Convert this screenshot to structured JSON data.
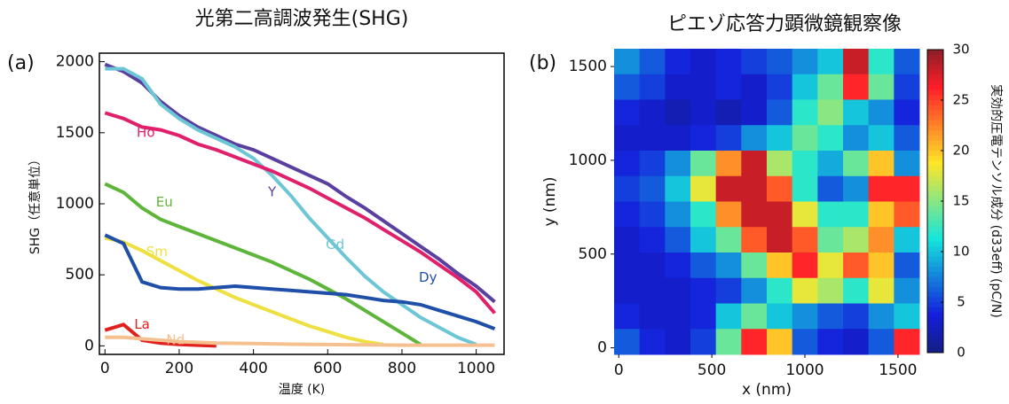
{
  "chart_data": [
    {
      "type": "line",
      "panel": "(a)",
      "title": "光第二高調波発生(SHG)",
      "xlabel": "温度 (K)",
      "ylabel": "SHG（任意単位）",
      "x": [
        0,
        50,
        100,
        150,
        200,
        250,
        300,
        350,
        400,
        450,
        500,
        550,
        600,
        650,
        700,
        750,
        800,
        850,
        900,
        950,
        1000,
        1050
      ],
      "series": [
        {
          "name": "Y",
          "color": "#5b3fa0",
          "values": [
            1980,
            1930,
            1850,
            1720,
            1620,
            1540,
            1480,
            1420,
            1380,
            1320,
            1260,
            1200,
            1140,
            1050,
            970,
            880,
            790,
            700,
            610,
            510,
            420,
            310
          ]
        },
        {
          "name": "Gd",
          "color": "#6cc6d6",
          "values": [
            1950,
            1950,
            1880,
            1700,
            1600,
            1520,
            1460,
            1400,
            1320,
            1200,
            1060,
            900,
            760,
            620,
            490,
            380,
            290,
            200,
            130,
            60,
            10,
            null
          ]
        },
        {
          "name": "Ho",
          "color": "#e0206a",
          "values": [
            1640,
            1600,
            1540,
            1520,
            1480,
            1420,
            1380,
            1330,
            1280,
            1230,
            1170,
            1110,
            1040,
            970,
            900,
            820,
            740,
            660,
            570,
            480,
            380,
            230
          ]
        },
        {
          "name": "Eu",
          "color": "#5db53a",
          "values": [
            1140,
            1080,
            970,
            890,
            840,
            790,
            740,
            690,
            640,
            590,
            530,
            470,
            400,
            330,
            250,
            170,
            90,
            10,
            null,
            null,
            null,
            null
          ]
        },
        {
          "name": "Sm",
          "color": "#ede040",
          "values": [
            760,
            730,
            670,
            600,
            530,
            460,
            400,
            340,
            290,
            240,
            190,
            140,
            100,
            60,
            30,
            10,
            null,
            null,
            null,
            null,
            null,
            null
          ]
        },
        {
          "name": "Dy",
          "color": "#1f4fa8",
          "values": [
            780,
            720,
            450,
            410,
            400,
            400,
            410,
            420,
            410,
            400,
            390,
            380,
            370,
            360,
            340,
            320,
            310,
            290,
            250,
            210,
            170,
            120
          ]
        },
        {
          "name": "La",
          "color": "#e0201e",
          "values": [
            110,
            150,
            40,
            20,
            10,
            5,
            0,
            null,
            null,
            null,
            null,
            null,
            null,
            null,
            null,
            null,
            null,
            null,
            null,
            null,
            null,
            null
          ]
        },
        {
          "name": "Nd",
          "color": "#f5c090",
          "values": [
            60,
            60,
            50,
            40,
            30,
            25,
            20,
            18,
            16,
            14,
            12,
            10,
            9,
            8,
            7,
            6,
            5,
            5,
            5,
            5,
            5,
            5
          ]
        }
      ],
      "xlim": [
        -15,
        1075
      ],
      "xticks": [
        0,
        200,
        400,
        600,
        800,
        1000
      ],
      "ylim": [
        -60,
        2060
      ],
      "yticks": [
        0,
        500,
        1000,
        1500,
        2000
      ]
    },
    {
      "type": "heatmap",
      "panel": "(b)",
      "title": "ピエゾ応答力顕微鏡観察像",
      "xlabel": "x (nm)",
      "ylabel": "y (nm)",
      "xlim": [
        -25,
        1615
      ],
      "xticks": [
        0,
        500,
        1000,
        1500
      ],
      "ylim": [
        -35,
        1595
      ],
      "yticks": [
        0,
        500,
        1000,
        1500
      ],
      "clim": [
        0,
        30
      ],
      "cticks": [
        0,
        5,
        10,
        15,
        20,
        25,
        30
      ],
      "colorbar_label": "実効的圧電テンソル成分 (d33eff) (pC/N)",
      "z": [
        [
          8,
          6,
          4,
          3,
          4,
          5,
          6,
          8,
          10,
          28,
          12,
          6
        ],
        [
          6,
          5,
          3,
          3,
          4,
          3,
          5,
          10,
          14,
          26,
          14,
          5
        ],
        [
          4,
          3,
          2,
          3,
          2,
          3,
          6,
          12,
          15,
          10,
          8,
          4
        ],
        [
          3,
          3,
          3,
          4,
          5,
          8,
          10,
          14,
          12,
          8,
          10,
          6
        ],
        [
          4,
          5,
          8,
          14,
          22,
          28,
          16,
          12,
          9,
          14,
          20,
          8
        ],
        [
          5,
          6,
          10,
          18,
          28,
          28,
          24,
          12,
          6,
          8,
          26,
          26
        ],
        [
          4,
          5,
          8,
          12,
          22,
          28,
          28,
          18,
          12,
          12,
          20,
          24
        ],
        [
          3,
          4,
          6,
          10,
          14,
          24,
          28,
          24,
          14,
          16,
          22,
          10
        ],
        [
          3,
          3,
          4,
          6,
          8,
          14,
          20,
          26,
          18,
          24,
          20,
          6
        ],
        [
          3,
          3,
          3,
          4,
          5,
          8,
          12,
          18,
          16,
          12,
          18,
          8
        ],
        [
          4,
          3,
          3,
          4,
          10,
          14,
          10,
          8,
          6,
          5,
          8,
          10
        ],
        [
          6,
          4,
          3,
          5,
          14,
          26,
          20,
          6,
          4,
          3,
          6,
          26
        ]
      ]
    }
  ]
}
